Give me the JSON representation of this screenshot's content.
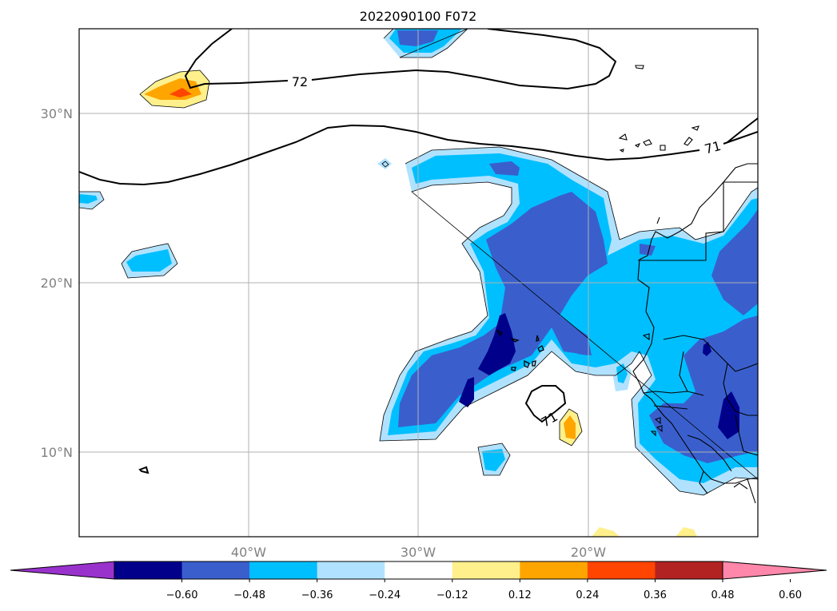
{
  "title": "2022090100 F072",
  "map": {
    "lon_labels": [
      "40°W",
      "30°W",
      "20°W"
    ],
    "lat_labels": [
      "30°N",
      "20°N",
      "10°N"
    ],
    "contour_labels": [
      "72",
      "71",
      "71"
    ]
  },
  "colorbar": {
    "ticks": [
      "−0.60",
      "−0.48",
      "−0.36",
      "−0.24",
      "−0.12",
      "0.12",
      "0.24",
      "0.36",
      "0.48",
      "0.60"
    ],
    "colors": {
      "under": "#9932cc",
      "bins": [
        "#00008b",
        "#3a5fcd",
        "#00bfff",
        "#b0e2ff",
        "#ffffff",
        "#fff08c",
        "#ffa500",
        "#ff4500",
        "#b22222"
      ],
      "over": "#ff88aa"
    }
  },
  "colors": {
    "dark_blue": "#00008b",
    "medium_blue": "#3a5fcd",
    "sky_blue": "#00bfff",
    "light_blue": "#b0e2ff",
    "light_yellow": "#fff08c",
    "orange": "#ffa500",
    "red_orange": "#ff4500",
    "gridline": "#b0b0b0"
  }
}
